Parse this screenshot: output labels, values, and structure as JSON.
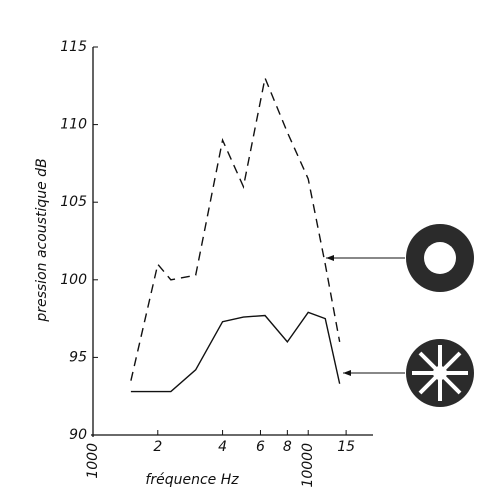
{
  "chart_data": {
    "type": "line",
    "ylabel": "pression acoustique dB",
    "xlabel": "fréquence Hz",
    "xscale": "log",
    "xlim": [
      1000,
      20000
    ],
    "xticks": [
      {
        "value": 1000,
        "label": "1000"
      },
      {
        "value": 2000,
        "label": "2"
      },
      {
        "value": 4000,
        "label": "4"
      },
      {
        "value": 6000,
        "label": "6"
      },
      {
        "value": 8000,
        "label": "8"
      },
      {
        "value": 10000,
        "label": "10000"
      },
      {
        "value": 15000,
        "label": "15"
      }
    ],
    "ylim": [
      90,
      115
    ],
    "yticks": [
      90,
      95,
      100,
      105,
      110,
      115
    ],
    "grid": false,
    "series": [
      {
        "color": "#111111",
        "dash": true,
        "x": [
          1500,
          2000,
          2300,
          3000,
          4000,
          5000,
          6300,
          8000,
          10000,
          12000,
          14000
        ],
        "values": [
          93.5,
          101,
          100,
          100.3,
          109,
          106,
          113,
          109.5,
          106.5,
          101,
          96
        ]
      },
      {
        "color": "#111111",
        "dash": false,
        "x": [
          1500,
          2300,
          3000,
          4000,
          5000,
          6300,
          8000,
          10000,
          12000,
          14000
        ],
        "values": [
          92.8,
          92.8,
          94.2,
          97.3,
          97.6,
          97.7,
          96,
          97.9,
          97.5,
          93.3
        ]
      }
    ]
  }
}
